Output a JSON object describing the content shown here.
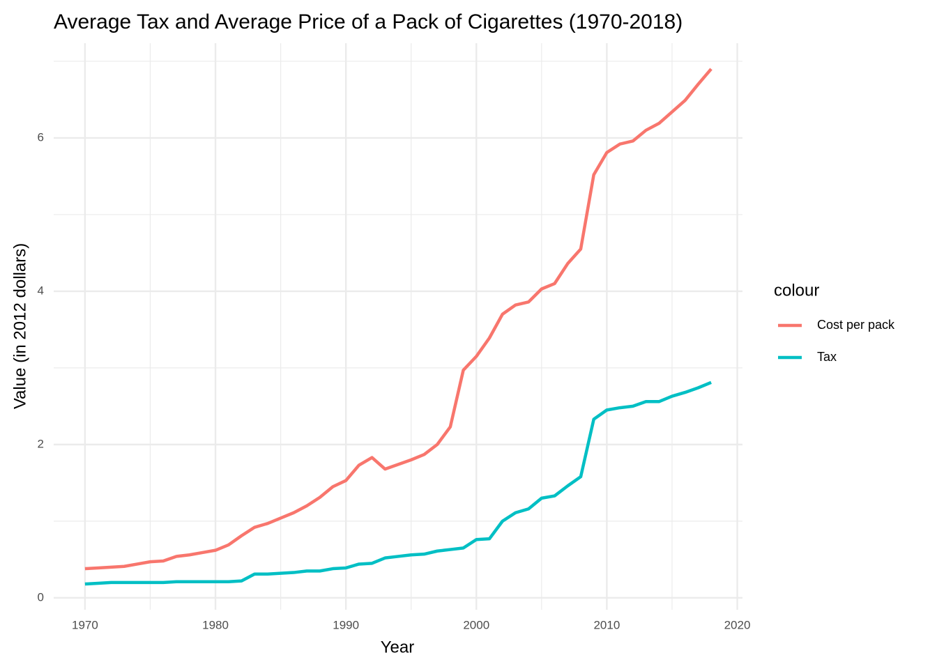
{
  "chart_data": {
    "type": "line",
    "title": "Average Tax and Average Price of a Pack of Cigarettes (1970-2018)",
    "x_label": "Year",
    "y_label": "Value (in 2012 dollars)",
    "legend_title": "colour",
    "legend_position": "right",
    "grid": true,
    "x": [
      1970,
      1971,
      1972,
      1973,
      1974,
      1975,
      1976,
      1977,
      1978,
      1979,
      1980,
      1981,
      1982,
      1983,
      1984,
      1985,
      1986,
      1987,
      1988,
      1989,
      1990,
      1991,
      1992,
      1993,
      1994,
      1995,
      1996,
      1997,
      1998,
      1999,
      2000,
      2001,
      2002,
      2003,
      2004,
      2005,
      2006,
      2007,
      2008,
      2009,
      2010,
      2011,
      2012,
      2013,
      2014,
      2015,
      2016,
      2017,
      2018
    ],
    "series": [
      {
        "name": "Cost per pack",
        "color": "#F8766D",
        "values": [
          0.38,
          0.39,
          0.4,
          0.41,
          0.44,
          0.47,
          0.48,
          0.54,
          0.56,
          0.59,
          0.62,
          0.69,
          0.81,
          0.92,
          0.97,
          1.04,
          1.11,
          1.2,
          1.31,
          1.45,
          1.53,
          1.73,
          1.83,
          1.68,
          1.74,
          1.8,
          1.87,
          2.0,
          2.23,
          2.97,
          3.15,
          3.39,
          3.7,
          3.82,
          3.86,
          4.03,
          4.1,
          4.36,
          4.55,
          5.52,
          5.81,
          5.92,
          5.96,
          6.1,
          6.19,
          6.34,
          6.49,
          6.7,
          6.9
        ]
      },
      {
        "name": "Tax",
        "color": "#00BFC4",
        "values": [
          0.18,
          0.19,
          0.2,
          0.2,
          0.2,
          0.2,
          0.2,
          0.21,
          0.21,
          0.21,
          0.21,
          0.21,
          0.22,
          0.31,
          0.31,
          0.32,
          0.33,
          0.35,
          0.35,
          0.38,
          0.39,
          0.44,
          0.45,
          0.52,
          0.54,
          0.56,
          0.57,
          0.61,
          0.63,
          0.65,
          0.76,
          0.77,
          1.0,
          1.11,
          1.16,
          1.3,
          1.33,
          1.46,
          1.58,
          2.33,
          2.45,
          2.48,
          2.5,
          2.56,
          2.56,
          2.63,
          2.68,
          2.74,
          2.81
        ]
      }
    ],
    "xlim": [
      1967.6,
      2020.4
    ],
    "xticks": [
      1970,
      1980,
      1990,
      2000,
      2010,
      2020
    ],
    "xminorticks": [
      1975,
      1985,
      1995,
      2005,
      2015
    ],
    "ylim": [
      -0.156,
      7.236
    ],
    "yticks": [
      0,
      2,
      4,
      6
    ],
    "yminorticks": [
      1,
      3,
      5,
      7
    ]
  }
}
